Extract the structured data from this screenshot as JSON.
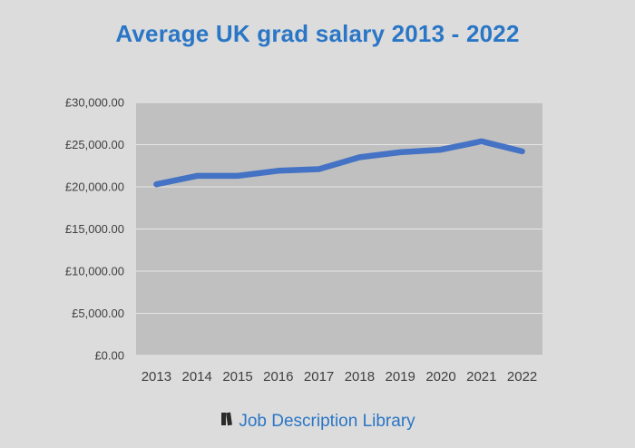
{
  "colors": {
    "background": "#dcdcdc",
    "plot_background": "#c0c0c0",
    "gridline": "#e6e6e6",
    "line": "#4472c4",
    "title": "#2a76c6",
    "tick_text": "#404040"
  },
  "chart_data": {
    "type": "line",
    "title": "Average UK grad salary 2013 - 2022",
    "xlabel": "",
    "ylabel": "",
    "x": [
      "2013",
      "2014",
      "2015",
      "2016",
      "2017",
      "2018",
      "2019",
      "2020",
      "2021",
      "2022"
    ],
    "series": [
      {
        "values": [
          20300,
          21300,
          21300,
          21900,
          22100,
          23500,
          24100,
          24400,
          25400,
          24200
        ]
      }
    ],
    "ylim": [
      0,
      30000
    ],
    "yticks": [
      0,
      5000,
      10000,
      15000,
      20000,
      25000,
      30000
    ],
    "ytick_labels": [
      "£0.00",
      "£5,000.00",
      "£10,000.00",
      "£15,000.00",
      "£20,000.00",
      "£25,000.00",
      "£30,000.00"
    ],
    "grid": true,
    "legend": "none"
  },
  "footer": {
    "icon": "book-icon",
    "text": "Job Description Library"
  }
}
